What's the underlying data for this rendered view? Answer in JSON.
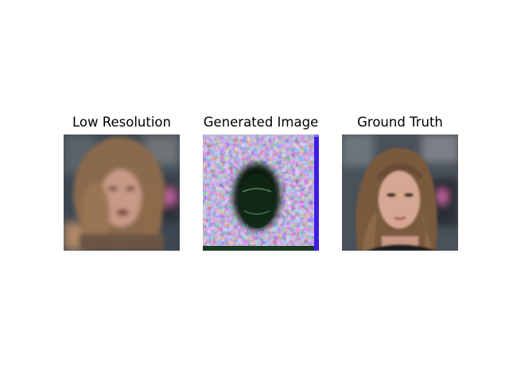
{
  "figure": {
    "panels": [
      {
        "title": "Low Resolution",
        "image": "blurry pixelated face with brown hair"
      },
      {
        "title": "Generated Image",
        "image": "noisy colorful generated face with dark center"
      },
      {
        "title": "Ground Truth",
        "image": "clear portrait of woman with brown hair"
      }
    ]
  },
  "colors": {
    "low_res_bg": "#3d4752",
    "generated_bg": "#8a7fb8",
    "ground_truth_bg": "#4a5158"
  }
}
